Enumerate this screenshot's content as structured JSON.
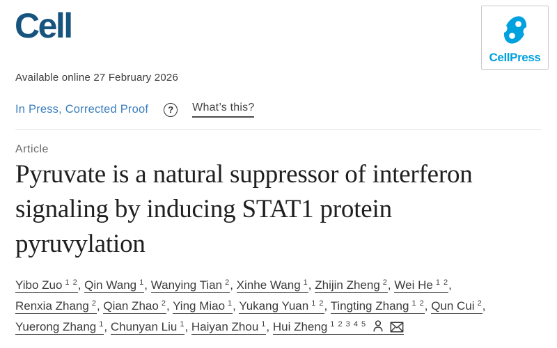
{
  "header": {
    "journal_name": "Cell",
    "publisher_name": "CellPress"
  },
  "meta": {
    "available_online": "Available online 27 February 2026",
    "status": "In Press, Corrected Proof",
    "help_icon": "question-mark-icon",
    "help_glyph": "?",
    "whats_this": "What’s this?"
  },
  "article": {
    "type_label": "Article",
    "title": "Pyruvate is a natural suppressor of interferon signaling by inducing STAT1 protein pyruvylation"
  },
  "authors": [
    {
      "name": "Yibo Zuo",
      "sup": "1 2"
    },
    {
      "name": "Qin Wang",
      "sup": "1"
    },
    {
      "name": "Wanying Tian",
      "sup": "2"
    },
    {
      "name": "Xinhe Wang",
      "sup": "1"
    },
    {
      "name": "Zhijin Zheng",
      "sup": "2"
    },
    {
      "name": "Wei He",
      "sup": "1 2"
    },
    {
      "name": "Renxia Zhang",
      "sup": "2"
    },
    {
      "name": "Qian Zhao",
      "sup": "2"
    },
    {
      "name": "Ying Miao",
      "sup": "1"
    },
    {
      "name": "Yukang Yuan",
      "sup": "1 2"
    },
    {
      "name": "Tingting Zhang",
      "sup": "1 2"
    },
    {
      "name": "Qun Cui",
      "sup": "2"
    },
    {
      "name": "Yuerong Zhang",
      "sup": "1"
    },
    {
      "name": "Chunyan Liu",
      "sup": "1"
    },
    {
      "name": "Haiyan Zhou",
      "sup": "1"
    },
    {
      "name": "Hui Zheng",
      "sup": "1 2 3 4 5",
      "icons": [
        "person-icon",
        "envelope-icon"
      ]
    }
  ],
  "colors": {
    "journal_navy": "#17547D",
    "cellpress_blue": "#00A1DF",
    "status_blue": "#3B7EBF",
    "text_dark": "#3C3C3C",
    "title_color": "#1F1F1F",
    "label_gray": "#6A6A6A",
    "divider": "#E2E2E2"
  }
}
